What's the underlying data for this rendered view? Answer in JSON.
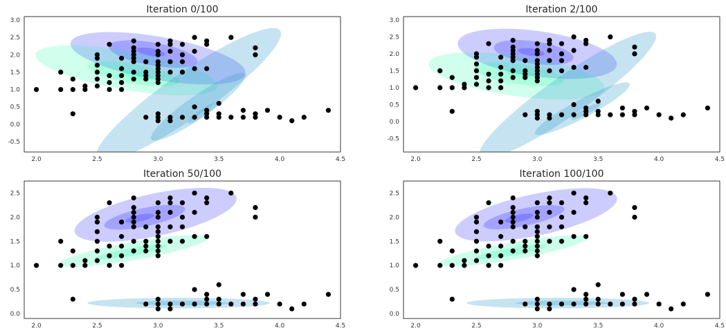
{
  "chart_data": [
    {
      "type": "scatter",
      "title": "Iteration 0/100",
      "xlim": [
        1.9,
        4.5
      ],
      "ylim": [
        -0.8,
        3.1
      ],
      "xticks": [
        "2.0",
        "2.5",
        "3.0",
        "3.5",
        "4.0",
        "4.5"
      ],
      "yticks": [
        "-0.5",
        "0.0",
        "0.5",
        "1.0",
        "1.5",
        "2.0",
        "2.5",
        "3.0"
      ],
      "grid": false,
      "points_ref": "points",
      "ellipses": [
        {
          "cx": 3.0,
          "cy": 1.9,
          "rx": 0.73,
          "ry": 0.62,
          "angle": -10,
          "color": "#0000ff",
          "opacity": 0.2
        },
        {
          "cx": 2.96,
          "cy": 2.02,
          "rx": 0.37,
          "ry": 0.33,
          "angle": -10,
          "color": "#0000ff",
          "opacity": 0.2
        },
        {
          "cx": 2.94,
          "cy": 2.08,
          "rx": 0.12,
          "ry": 0.11,
          "angle": -10,
          "color": "#0000ff",
          "opacity": 0.2
        },
        {
          "cx": 2.74,
          "cy": 1.55,
          "rx": 0.76,
          "ry": 0.56,
          "angle": -10,
          "color": "#00ff99",
          "opacity": 0.18
        },
        {
          "cx": 2.8,
          "cy": 1.45,
          "rx": 0.38,
          "ry": 0.28,
          "angle": -10,
          "color": "#00ff99",
          "opacity": 0.18
        },
        {
          "cx": 2.83,
          "cy": 1.4,
          "rx": 0.13,
          "ry": 0.1,
          "angle": -10,
          "color": "#00ff99",
          "opacity": 0.18
        },
        {
          "cx": 3.25,
          "cy": 0.85,
          "rx": 0.92,
          "ry": 0.64,
          "angle": 35,
          "color": "#3399cc",
          "opacity": 0.28
        },
        {
          "cx": 3.33,
          "cy": 0.5,
          "rx": 0.47,
          "ry": 0.32,
          "angle": 35,
          "color": "#3399cc",
          "opacity": 0.28
        },
        {
          "cx": 3.37,
          "cy": 0.33,
          "rx": 0.15,
          "ry": 0.1,
          "angle": 35,
          "color": "#3399cc",
          "opacity": 0.28
        }
      ]
    },
    {
      "type": "scatter",
      "title": "Iteration 2/100",
      "xlim": [
        1.9,
        4.5
      ],
      "ylim": [
        -0.9,
        3.1
      ],
      "xticks": [
        "2.0",
        "2.5",
        "3.0",
        "3.5",
        "4.0",
        "4.5"
      ],
      "yticks": [
        "-0.5",
        "0.0",
        "0.5",
        "1.0",
        "1.5",
        "2.0",
        "2.5",
        "3.0"
      ],
      "grid": false,
      "points_ref": "points",
      "ellipses": [
        {
          "cx": 3.0,
          "cy": 2.0,
          "rx": 0.66,
          "ry": 0.67,
          "angle": -8,
          "color": "#0000ff",
          "opacity": 0.2
        },
        {
          "cx": 2.97,
          "cy": 2.04,
          "rx": 0.33,
          "ry": 0.33,
          "angle": -8,
          "color": "#0000ff",
          "opacity": 0.2
        },
        {
          "cx": 2.95,
          "cy": 2.05,
          "rx": 0.11,
          "ry": 0.11,
          "angle": -8,
          "color": "#0000ff",
          "opacity": 0.2
        },
        {
          "cx": 2.83,
          "cy": 1.35,
          "rx": 0.73,
          "ry": 0.6,
          "angle": -8,
          "color": "#00ff99",
          "opacity": 0.18
        },
        {
          "cx": 2.85,
          "cy": 1.4,
          "rx": 0.37,
          "ry": 0.3,
          "angle": -8,
          "color": "#00ff99",
          "opacity": 0.18
        },
        {
          "cx": 2.86,
          "cy": 1.42,
          "rx": 0.12,
          "ry": 0.1,
          "angle": -8,
          "color": "#00ff99",
          "opacity": 0.18
        },
        {
          "cx": 3.25,
          "cy": 0.78,
          "rx": 0.88,
          "ry": 0.58,
          "angle": 35,
          "color": "#3399cc",
          "opacity": 0.28
        },
        {
          "cx": 3.37,
          "cy": 0.38,
          "rx": 0.44,
          "ry": 0.27,
          "angle": 28,
          "color": "#3399cc",
          "opacity": 0.28
        },
        {
          "cx": 3.4,
          "cy": 0.3,
          "rx": 0.14,
          "ry": 0.09,
          "angle": 28,
          "color": "#3399cc",
          "opacity": 0.28
        }
      ]
    },
    {
      "type": "scatter",
      "title": "Iteration 50/100",
      "xlim": [
        1.9,
        4.5
      ],
      "ylim": [
        -0.1,
        2.75
      ],
      "xticks": [
        "2.0",
        "2.5",
        "3.0",
        "3.5",
        "4.0",
        "4.5"
      ],
      "yticks": [
        "0.0",
        "0.5",
        "1.0",
        "1.5",
        "2.0",
        "2.5"
      ],
      "grid": false,
      "points_ref": "points",
      "ellipses": [
        {
          "cx": 2.98,
          "cy": 2.05,
          "rx": 0.68,
          "ry": 0.44,
          "angle": 12,
          "color": "#0000ff",
          "opacity": 0.2
        },
        {
          "cx": 2.89,
          "cy": 2.0,
          "rx": 0.34,
          "ry": 0.19,
          "angle": 12,
          "color": "#0000ff",
          "opacity": 0.2
        },
        {
          "cx": 2.85,
          "cy": 1.98,
          "rx": 0.12,
          "ry": 0.07,
          "angle": 12,
          "color": "#0000ff",
          "opacity": 0.2
        },
        {
          "cx": 2.8,
          "cy": 1.3,
          "rx": 0.62,
          "ry": 0.19,
          "angle": 10,
          "color": "#00ff99",
          "opacity": 0.2
        },
        {
          "cx": 2.78,
          "cy": 1.28,
          "rx": 0.3,
          "ry": 0.08,
          "angle": 10,
          "color": "#00ff99",
          "opacity": 0.2
        },
        {
          "cx": 3.17,
          "cy": 0.22,
          "rx": 0.75,
          "ry": 0.11,
          "angle": 0,
          "color": "#3399cc",
          "opacity": 0.28
        },
        {
          "cx": 3.2,
          "cy": 0.22,
          "rx": 0.38,
          "ry": 0.05,
          "angle": 0,
          "color": "#3399cc",
          "opacity": 0.28
        }
      ]
    },
    {
      "type": "scatter",
      "title": "Iteration 100/100",
      "xlim": [
        1.9,
        4.5
      ],
      "ylim": [
        -0.1,
        2.75
      ],
      "xticks": [
        "2.0",
        "2.5",
        "3.0",
        "3.5",
        "4.0",
        "4.5"
      ],
      "yticks": [
        "0.0",
        "0.5",
        "1.0",
        "1.5",
        "2.0",
        "2.5"
      ],
      "grid": false,
      "points_ref": "points",
      "ellipses": [
        {
          "cx": 2.99,
          "cy": 2.05,
          "rx": 0.68,
          "ry": 0.43,
          "angle": 12,
          "color": "#0000ff",
          "opacity": 0.2
        },
        {
          "cx": 2.89,
          "cy": 2.0,
          "rx": 0.34,
          "ry": 0.18,
          "angle": 12,
          "color": "#0000ff",
          "opacity": 0.2
        },
        {
          "cx": 2.85,
          "cy": 1.98,
          "rx": 0.12,
          "ry": 0.07,
          "angle": 12,
          "color": "#0000ff",
          "opacity": 0.2
        },
        {
          "cx": 2.8,
          "cy": 1.3,
          "rx": 0.62,
          "ry": 0.18,
          "angle": 10,
          "color": "#00ff99",
          "opacity": 0.2
        },
        {
          "cx": 2.78,
          "cy": 1.28,
          "rx": 0.3,
          "ry": 0.08,
          "angle": 10,
          "color": "#00ff99",
          "opacity": 0.2
        },
        {
          "cx": 3.17,
          "cy": 0.22,
          "rx": 0.75,
          "ry": 0.11,
          "angle": 0,
          "color": "#3399cc",
          "opacity": 0.28
        },
        {
          "cx": 3.2,
          "cy": 0.22,
          "rx": 0.38,
          "ry": 0.05,
          "angle": 0,
          "color": "#3399cc",
          "opacity": 0.28
        }
      ]
    }
  ],
  "points": [
    [
      2.0,
      1.0
    ],
    [
      2.2,
      1.5
    ],
    [
      2.2,
      1.0
    ],
    [
      2.3,
      1.3
    ],
    [
      2.3,
      1.0
    ],
    [
      2.3,
      0.3
    ],
    [
      2.4,
      1.1
    ],
    [
      2.4,
      1.0
    ],
    [
      2.5,
      1.7
    ],
    [
      2.5,
      1.5
    ],
    [
      2.5,
      1.3
    ],
    [
      2.5,
      1.1
    ],
    [
      2.5,
      1.9
    ],
    [
      2.5,
      2.0
    ],
    [
      2.6,
      2.3
    ],
    [
      2.6,
      1.4
    ],
    [
      2.6,
      1.2
    ],
    [
      2.6,
      1.0
    ],
    [
      2.7,
      1.9
    ],
    [
      2.7,
      1.6
    ],
    [
      2.7,
      1.4
    ],
    [
      2.7,
      1.2
    ],
    [
      2.7,
      1.0
    ],
    [
      2.8,
      2.4
    ],
    [
      2.8,
      2.2
    ],
    [
      2.8,
      2.1
    ],
    [
      2.8,
      2.0
    ],
    [
      2.8,
      1.9
    ],
    [
      2.8,
      1.8
    ],
    [
      2.8,
      1.5
    ],
    [
      2.8,
      1.3
    ],
    [
      2.9,
      1.8
    ],
    [
      2.9,
      1.5
    ],
    [
      2.9,
      1.4
    ],
    [
      2.9,
      1.3
    ],
    [
      2.9,
      0.2
    ],
    [
      3.0,
      2.3
    ],
    [
      3.0,
      2.1
    ],
    [
      3.0,
      2.0
    ],
    [
      3.0,
      1.8
    ],
    [
      3.0,
      1.7
    ],
    [
      3.0,
      1.6
    ],
    [
      3.0,
      1.5
    ],
    [
      3.0,
      1.4
    ],
    [
      3.0,
      1.3
    ],
    [
      3.0,
      1.2
    ],
    [
      3.0,
      0.3
    ],
    [
      3.0,
      0.2
    ],
    [
      3.0,
      0.1
    ],
    [
      3.1,
      2.4
    ],
    [
      3.1,
      2.3
    ],
    [
      3.1,
      2.1
    ],
    [
      3.1,
      1.8
    ],
    [
      3.1,
      1.5
    ],
    [
      3.1,
      0.2
    ],
    [
      3.1,
      0.1
    ],
    [
      3.2,
      2.3
    ],
    [
      3.2,
      2.0
    ],
    [
      3.2,
      1.8
    ],
    [
      3.2,
      1.5
    ],
    [
      3.2,
      0.2
    ],
    [
      3.3,
      2.5
    ],
    [
      3.3,
      2.1
    ],
    [
      3.3,
      1.6
    ],
    [
      3.3,
      0.5
    ],
    [
      3.3,
      0.2
    ],
    [
      3.4,
      2.4
    ],
    [
      3.4,
      2.3
    ],
    [
      3.4,
      1.6
    ],
    [
      3.4,
      0.4
    ],
    [
      3.4,
      0.3
    ],
    [
      3.4,
      0.2
    ],
    [
      3.5,
      0.6
    ],
    [
      3.5,
      0.3
    ],
    [
      3.5,
      0.2
    ],
    [
      3.6,
      2.5
    ],
    [
      3.6,
      0.2
    ],
    [
      3.7,
      0.4
    ],
    [
      3.7,
      0.2
    ],
    [
      3.8,
      2.2
    ],
    [
      3.8,
      2.0
    ],
    [
      3.8,
      0.3
    ],
    [
      3.8,
      0.2
    ],
    [
      3.9,
      0.4
    ],
    [
      4.0,
      0.2
    ],
    [
      4.1,
      0.1
    ],
    [
      4.2,
      0.2
    ],
    [
      4.4,
      0.4
    ]
  ],
  "colors": {
    "point": "#000000",
    "axis": "#222222"
  }
}
